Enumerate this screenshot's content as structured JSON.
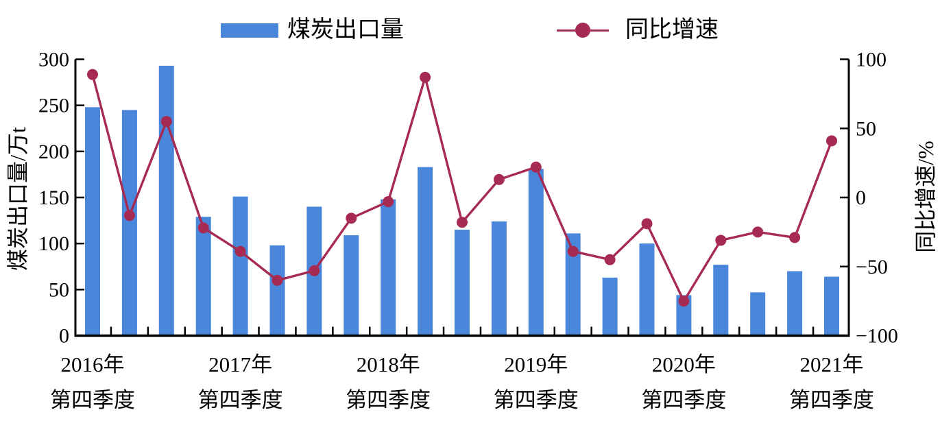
{
  "chart_data": {
    "type": "bar-line-combo",
    "title": "",
    "n_points": 21,
    "grid": false,
    "legend_position": "top",
    "colors": {
      "bar": "#4a86d9",
      "line": "#a62a52",
      "axis": "#000000",
      "background": "#ffffff"
    },
    "series": [
      {
        "name": "煤炭出口量",
        "type": "bar",
        "axis": "left",
        "values": [
          248,
          245,
          293,
          129,
          151,
          98,
          140,
          109,
          148,
          183,
          115,
          124,
          181,
          111,
          63,
          100,
          44,
          77,
          47,
          70,
          64
        ]
      },
      {
        "name": "同比增速",
        "type": "line",
        "axis": "right",
        "values": [
          89,
          -13,
          55,
          -22,
          -39,
          -60,
          -53,
          -15,
          -3,
          87,
          -18,
          13,
          22,
          -39,
          -45,
          -19,
          -75,
          -31,
          -25,
          -29,
          41
        ]
      }
    ],
    "x_tick_labels": [
      {
        "line1": "2016年",
        "line2": "第四季度",
        "index": 0
      },
      {
        "line1": "2017年",
        "line2": "第四季度",
        "index": 4
      },
      {
        "line1": "2018年",
        "line2": "第四季度",
        "index": 8
      },
      {
        "line1": "2019年",
        "line2": "第四季度",
        "index": 12
      },
      {
        "line1": "2020年",
        "line2": "第四季度",
        "index": 16
      },
      {
        "line1": "2021年",
        "line2": "第四季度",
        "index": 20
      }
    ],
    "left_axis": {
      "title": "煤炭出口量/万t",
      "min": 0,
      "max": 300,
      "step": 50,
      "ticks": [
        "0",
        "50",
        "100",
        "150",
        "200",
        "250",
        "300"
      ]
    },
    "right_axis": {
      "title": "同比增速/%",
      "min": -100,
      "max": 100,
      "step": 50,
      "ticks": [
        "−100",
        "−50",
        "0",
        "50",
        "100"
      ]
    }
  }
}
